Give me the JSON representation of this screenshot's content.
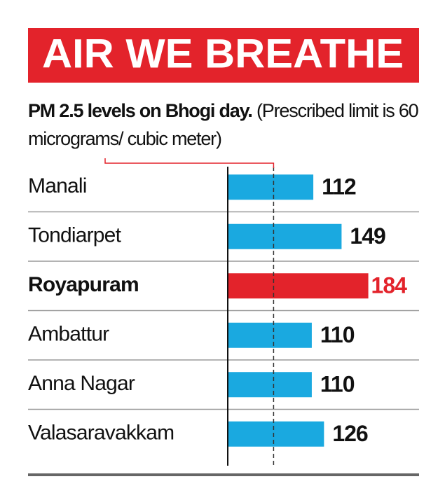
{
  "chart_data": {
    "type": "hbar",
    "title": "AIR WE BREATHE",
    "subtitle_bold": "PM 2.5 levels on Bhogi day.",
    "subtitle": "(Prescribed limit is 60 micrograms/ cubic meter)",
    "categories": [
      "Manali",
      "Tondiarpet",
      "Royapuram",
      "Ambattur",
      "Anna Nagar",
      "Valasaravakkam"
    ],
    "values": [
      112,
      149,
      184,
      110,
      110,
      126
    ],
    "colors": [
      "#1aa9e0",
      "#1aa9e0",
      "#e3232b",
      "#1aa9e0",
      "#1aa9e0",
      "#1aa9e0"
    ],
    "highlight_color": "#e3232b",
    "reference_line": 60,
    "xlim": [
      0,
      200
    ]
  }
}
